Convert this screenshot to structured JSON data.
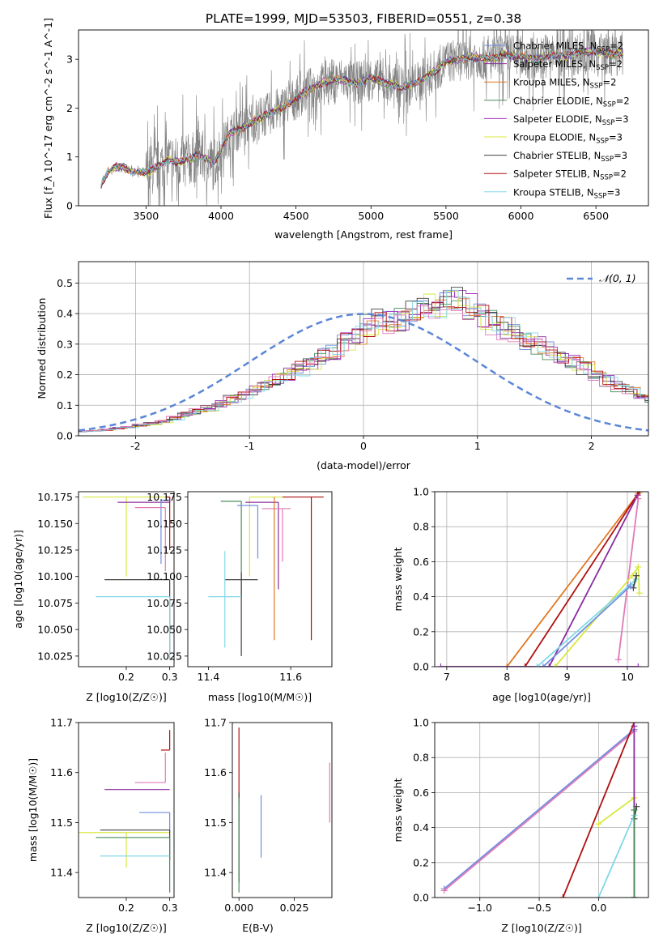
{
  "figure": {
    "title": "PLATE=1999, MJD=53503, FIBERID=0551, z=0.38"
  },
  "colors": {
    "chabrier_miles": "#6f8fe0",
    "salpeter_miles": "#8a2b9e",
    "kroupa_miles": "#e07820",
    "chabrier_elodie": "#4a8a5a",
    "salpeter_elodie": "#a030c0",
    "kroupa_elodie": "#d8e840",
    "chabrier_stelib": "#404040",
    "salpeter_stelib": "#b01010",
    "kroupa_stelib": "#80d8e8",
    "kroupa_pink": "#e07ab8",
    "data_grey": "#808080",
    "normal_dash": "#5b86d8"
  },
  "chart_data": [
    {
      "id": "spectrum",
      "type": "line",
      "title": "PLATE=1999, MJD=53503, FIBERID=0551, z=0.38",
      "xlabel": "wavelength [Angstrom, rest frame]",
      "ylabel": "Flux [f_λ 10^-17 erg cm^-2 s^-1 A^-1]",
      "xlim": [
        3050,
        6850
      ],
      "ylim": [
        0,
        3.6
      ],
      "xticks": [
        3500,
        4000,
        4500,
        5000,
        5500,
        6000,
        6500
      ],
      "yticks": [
        0,
        1,
        2,
        3
      ],
      "legend_position": "top-right",
      "continuum": {
        "x": [
          3200,
          3250,
          3300,
          3350,
          3400,
          3450,
          3500,
          3550,
          3600,
          3650,
          3700,
          3750,
          3800,
          3850,
          3900,
          3950,
          4000,
          4050,
          4100,
          4150,
          4200,
          4300,
          4400,
          4500,
          4600,
          4700,
          4800,
          4900,
          5000,
          5100,
          5200,
          5300,
          5400,
          5500,
          5600,
          5700,
          5800,
          5900,
          6000,
          6100,
          6200,
          6300,
          6400,
          6500,
          6600,
          6680
        ],
        "y": [
          0.45,
          0.7,
          0.8,
          0.78,
          0.72,
          0.7,
          0.68,
          0.75,
          0.85,
          0.95,
          0.9,
          0.92,
          0.95,
          1.05,
          0.95,
          0.85,
          1.15,
          1.45,
          1.55,
          1.6,
          1.72,
          1.85,
          2.0,
          2.2,
          2.4,
          2.55,
          2.6,
          2.5,
          2.62,
          2.5,
          2.45,
          2.5,
          2.7,
          2.95,
          3.0,
          3.05,
          3.0,
          3.1,
          3.05,
          3.0,
          3.1,
          3.05,
          3.15,
          3.15,
          3.1,
          3.12
        ]
      },
      "series": [
        {
          "name": "Chabrier MILES, N_SSP=2",
          "name_main": "Chabrier MILES, N",
          "name_sub": "SSP",
          "name_tail": "=2",
          "color_key": "chabrier_miles"
        },
        {
          "name": "Salpeter MILES, N_SSP=2",
          "name_main": "Salpeter MILES, N",
          "name_sub": "SSP",
          "name_tail": "=2",
          "color_key": "salpeter_miles"
        },
        {
          "name": "Kroupa MILES, N_SSP=2",
          "name_main": "Kroupa MILES, N",
          "name_sub": "SSP",
          "name_tail": "=2",
          "color_key": "kroupa_miles"
        },
        {
          "name": "Chabrier ELODIE, N_SSP=2",
          "name_main": "Chabrier ELODIE, N",
          "name_sub": "SSP",
          "name_tail": "=2",
          "color_key": "chabrier_elodie"
        },
        {
          "name": "Salpeter ELODIE, N_SSP=3",
          "name_main": "Salpeter ELODIE, N",
          "name_sub": "SSP",
          "name_tail": "=3",
          "color_key": "salpeter_elodie"
        },
        {
          "name": "Kroupa ELODIE, N_SSP=3",
          "name_main": "Kroupa ELODIE, N",
          "name_sub": "SSP",
          "name_tail": "=3",
          "color_key": "kroupa_elodie"
        },
        {
          "name": "Chabrier STELIB, N_SSP=3",
          "name_main": "Chabrier STELIB, N",
          "name_sub": "SSP",
          "name_tail": "=3",
          "color_key": "chabrier_stelib"
        },
        {
          "name": "Salpeter STELIB, N_SSP=2",
          "name_main": "Salpeter STELIB, N",
          "name_sub": "SSP",
          "name_tail": "=2",
          "color_key": "salpeter_stelib"
        },
        {
          "name": "Kroupa STELIB, N_SSP=3",
          "name_main": "Kroupa STELIB, N",
          "name_sub": "SSP",
          "name_tail": "=3",
          "color_key": "kroupa_stelib"
        }
      ]
    },
    {
      "id": "residuals",
      "type": "line",
      "xlabel": "(data-model)/error",
      "ylabel": "Normed distribution",
      "xlim": [
        -2.5,
        2.5
      ],
      "ylim": [
        0,
        0.57
      ],
      "xticks": [
        -2,
        -1,
        0,
        1,
        2
      ],
      "yticks": [
        0.0,
        0.1,
        0.2,
        0.3,
        0.4,
        0.5
      ],
      "grid": true,
      "legend_position": "top-right",
      "normal_label": "𝒩(0, 1)",
      "bin_width": 0.1,
      "bin_start": -2.5,
      "base_histogram": [
        0.015,
        0.017,
        0.02,
        0.025,
        0.028,
        0.035,
        0.04,
        0.048,
        0.058,
        0.07,
        0.08,
        0.09,
        0.105,
        0.12,
        0.13,
        0.15,
        0.17,
        0.185,
        0.2,
        0.22,
        0.24,
        0.26,
        0.28,
        0.31,
        0.33,
        0.36,
        0.38,
        0.37,
        0.38,
        0.41,
        0.42,
        0.43,
        0.44,
        0.45,
        0.42,
        0.39,
        0.37,
        0.35,
        0.33,
        0.31,
        0.3,
        0.28,
        0.26,
        0.24,
        0.22,
        0.2,
        0.18,
        0.16,
        0.15,
        0.13,
        0.12,
        0.1,
        0.09,
        0.075,
        0.065,
        0.055,
        0.05,
        0.045,
        0.04,
        0.035,
        0.03,
        0.028,
        0.025,
        0.022,
        0.02,
        0.018,
        0.017,
        0.016,
        0.015,
        0.014
      ]
    },
    {
      "id": "age_vs_z",
      "type": "scatter",
      "xlabel": "Z [log10(Z/Z☉)]",
      "ylabel": "age [log10(age/yr)]",
      "xlim": [
        0.09,
        0.31
      ],
      "ylim": [
        10.015,
        10.18
      ],
      "xticks": [
        0.2,
        0.3
      ],
      "yticks": [
        10.025,
        10.05,
        10.075,
        10.1,
        10.125,
        10.15,
        10.175
      ],
      "ytick_labels": [
        "10.025",
        "10.050",
        "10.075",
        "10.100",
        "10.125",
        "10.150",
        "10.175"
      ],
      "points": [
        {
          "color_key": "kroupa_elodie",
          "x": 0.2,
          "y": 10.175,
          "xerr": [
            0.1,
            0.1
          ],
          "yerr": [
            0.075,
            0.0
          ]
        },
        {
          "color_key": "salpeter_miles",
          "x": 0.3,
          "y": 10.17,
          "xerr": [
            0.12,
            0.0
          ],
          "yerr": [
            0.0,
            0.005
          ]
        },
        {
          "color_key": "chabrier_miles",
          "x": 0.28,
          "y": 10.172,
          "xerr": [
            0.0,
            0.02
          ],
          "yerr": [
            0.06,
            0.0
          ]
        },
        {
          "color_key": "kroupa_pink",
          "x": 0.29,
          "y": 10.165,
          "xerr": [
            0.07,
            0.0
          ],
          "yerr": [
            0.06,
            0.0
          ]
        },
        {
          "color_key": "salpeter_stelib",
          "x": 0.3,
          "y": 10.175,
          "xerr": [
            0.01,
            0.0
          ],
          "yerr": [
            0.05,
            0.0
          ]
        },
        {
          "color_key": "chabrier_stelib",
          "x": 0.3,
          "y": 10.097,
          "xerr": [
            0.15,
            0.0
          ],
          "yerr": [
            0.07,
            0.0
          ]
        },
        {
          "color_key": "kroupa_stelib",
          "x": 0.3,
          "y": 10.081,
          "xerr": [
            0.17,
            0.0
          ],
          "yerr": [
            0.06,
            0.0
          ]
        }
      ]
    },
    {
      "id": "age_vs_mass",
      "type": "scatter",
      "xlabel": "mass [log10(M/M☉)]",
      "xlim": [
        11.35,
        11.7
      ],
      "ylim": [
        10.015,
        10.18
      ],
      "xticks": [
        11.4,
        11.6
      ],
      "yticks": [
        10.025,
        10.05,
        10.075,
        10.1,
        10.125,
        10.15,
        10.175
      ],
      "ytick_labels": [
        "10.025",
        "10.050",
        "10.075",
        "10.100",
        "10.125",
        "10.150",
        "10.175"
      ],
      "points": [
        {
          "color_key": "chabrier_elodie",
          "x": 11.48,
          "y": 10.171,
          "xerr": [
            0.05,
            0.0
          ],
          "yerr": [
            0.09,
            0.0
          ]
        },
        {
          "color_key": "kroupa_elodie",
          "x": 11.5,
          "y": 10.175,
          "xerr": [
            0.0,
            0.1
          ],
          "yerr": [
            0.075,
            0.0
          ]
        },
        {
          "color_key": "salpeter_stelib",
          "x": 11.65,
          "y": 10.175,
          "xerr": [
            0.07,
            0.03
          ],
          "yerr": [
            0.135,
            0.0
          ]
        },
        {
          "color_key": "salpeter_miles",
          "x": 11.57,
          "y": 10.17,
          "xerr": [
            0.08,
            0.0
          ],
          "yerr": [
            0.082,
            0.0
          ]
        },
        {
          "color_key": "chabrier_miles",
          "x": 11.52,
          "y": 10.167,
          "xerr": [
            0.05,
            0.0
          ],
          "yerr": [
            0.05,
            0.0
          ]
        },
        {
          "color_key": "kroupa_pink",
          "x": 11.58,
          "y": 10.164,
          "xerr": [
            0.05,
            0.02
          ],
          "yerr": [
            0.05,
            0.0
          ]
        },
        {
          "color_key": "kroupa_miles",
          "x": 11.56,
          "y": 10.175,
          "xerr": [
            0.0,
            0.0
          ],
          "yerr": [
            0.135,
            0.0
          ]
        },
        {
          "color_key": "chabrier_stelib",
          "x": 11.48,
          "y": 10.097,
          "xerr": [
            0.04,
            0.04
          ],
          "yerr": [
            0.072,
            0.007
          ]
        },
        {
          "color_key": "kroupa_stelib",
          "x": 11.44,
          "y": 10.081,
          "xerr": [
            0.04,
            0.04
          ],
          "yerr": [
            0.048,
            0.043
          ]
        }
      ]
    },
    {
      "id": "weight_vs_age",
      "type": "line",
      "xlabel": "age [log10(age/yr)]",
      "ylabel": "mass weight",
      "xlim": [
        6.8,
        10.35
      ],
      "ylim": [
        0,
        1
      ],
      "xticks": [
        7,
        8,
        9,
        10
      ],
      "yticks": [
        0.0,
        0.2,
        0.4,
        0.6,
        0.8,
        1.0
      ],
      "grid": true,
      "series": [
        {
          "color_key": "kroupa_miles",
          "x": [
            8.0,
            10.18
          ],
          "y": [
            0.0,
            0.99
          ]
        },
        {
          "color_key": "salpeter_stelib",
          "x": [
            8.3,
            10.2
          ],
          "y": [
            0.0,
            1.0
          ]
        },
        {
          "color_key": "salpeter_miles",
          "x": [
            8.7,
            10.17
          ],
          "y": [
            0.0,
            0.98
          ]
        },
        {
          "color_key": "salpeter_elodie",
          "x": [
            6.9,
            10.18
          ],
          "y": [
            0.0,
            0.0
          ]
        },
        {
          "color_key": "kroupa_pink",
          "x": [
            9.85,
            10.18
          ],
          "y": [
            0.04,
            0.96
          ]
        },
        {
          "color_key": "kroupa_elodie",
          "x": [
            8.8,
            10.08,
            10.18,
            10.2
          ],
          "y": [
            0.0,
            0.52,
            0.57,
            0.42
          ]
        },
        {
          "color_key": "kroupa_stelib",
          "x": [
            8.5,
            10.05,
            10.15
          ],
          "y": [
            0.0,
            0.47,
            0.5
          ]
        },
        {
          "color_key": "chabrier_stelib",
          "x": [
            10.1,
            10.15
          ],
          "y": [
            0.45,
            0.52
          ]
        },
        {
          "color_key": "chabrier_miles",
          "x": [
            8.6,
            10.05
          ],
          "y": [
            0.0,
            0.46
          ]
        }
      ]
    },
    {
      "id": "mass_vs_z",
      "type": "scatter",
      "xlabel": "Z [log10(Z/Z☉)]",
      "ylabel": "mass [log10(M/M☉)]",
      "xlim": [
        0.09,
        0.31
      ],
      "ylim": [
        11.35,
        11.7
      ],
      "xticks": [
        0.2,
        0.3
      ],
      "yticks": [
        11.4,
        11.5,
        11.6,
        11.7
      ],
      "points": [
        {
          "color_key": "salpeter_stelib",
          "x": 0.3,
          "y": 11.645,
          "xerr": [
            0.02,
            0.0
          ],
          "yerr": [
            0.0,
            0.04
          ]
        },
        {
          "color_key": "kroupa_pink",
          "x": 0.29,
          "y": 11.58,
          "xerr": [
            0.07,
            0.0
          ],
          "yerr": [
            0.0,
            0.06
          ]
        },
        {
          "color_key": "salpeter_miles",
          "x": 0.3,
          "y": 11.566,
          "xerr": [
            0.15,
            0.0
          ],
          "yerr": [
            0.0,
            0.0
          ]
        },
        {
          "color_key": "chabrier_miles",
          "x": 0.3,
          "y": 11.52,
          "xerr": [
            0.07,
            0.0
          ],
          "yerr": [
            0.04,
            0.0
          ]
        },
        {
          "color_key": "kroupa_elodie",
          "x": 0.2,
          "y": 11.48,
          "xerr": [
            0.2,
            0.1
          ],
          "yerr": [
            0.07,
            0.0
          ]
        },
        {
          "color_key": "chabrier_stelib",
          "x": 0.3,
          "y": 11.485,
          "xerr": [
            0.16,
            0.0
          ],
          "yerr": [
            0.06,
            0.0
          ]
        },
        {
          "color_key": "chabrier_elodie",
          "x": 0.3,
          "y": 11.47,
          "xerr": [
            0.17,
            0.0
          ],
          "yerr": [
            0.11,
            0.0
          ]
        },
        {
          "color_key": "kroupa_stelib",
          "x": 0.3,
          "y": 11.433,
          "xerr": [
            0.16,
            0.0
          ],
          "yerr": [
            0.0,
            0.0
          ]
        }
      ]
    },
    {
      "id": "mass_vs_ebv",
      "type": "scatter",
      "xlabel": "E(B-V)",
      "xlim": [
        -0.003,
        0.042
      ],
      "ylim": [
        11.35,
        11.7
      ],
      "xticks": [
        0.0,
        0.025
      ],
      "xtick_labels": [
        "0.000",
        "0.025"
      ],
      "yticks": [
        11.4,
        11.5,
        11.6,
        11.7
      ],
      "points": [
        {
          "color_key": "salpeter_stelib",
          "x": 0.0,
          "y": 11.65,
          "xerr": [
            0.0,
            0.0
          ],
          "yerr": [
            0.11,
            0.04
          ]
        },
        {
          "color_key": "chabrier_stelib",
          "x": 0.0,
          "y": 11.5,
          "xerr": [
            0.0,
            0.0
          ],
          "yerr": [
            0.12,
            0.06
          ]
        },
        {
          "color_key": "chabrier_elodie",
          "x": 0.0,
          "y": 11.45,
          "xerr": [
            0.0,
            0.0
          ],
          "yerr": [
            0.09,
            0.1
          ]
        },
        {
          "color_key": "chabrier_miles",
          "x": 0.01,
          "y": 11.49,
          "xerr": [
            0.0,
            0.0
          ],
          "yerr": [
            0.06,
            0.065
          ]
        },
        {
          "color_key": "kroupa_pink",
          "x": 0.041,
          "y": 11.56,
          "xerr": [
            0.0,
            0.0
          ],
          "yerr": [
            0.06,
            0.06
          ]
        }
      ]
    },
    {
      "id": "weight_vs_z",
      "type": "line",
      "xlabel": "Z [log10(Z/Z☉)]",
      "ylabel": "mass weight",
      "xlim": [
        -1.38,
        0.42
      ],
      "ylim": [
        0,
        1
      ],
      "xticks": [
        -1.0,
        -0.5,
        0.0
      ],
      "xtick_labels": [
        "−1.0",
        "−0.5",
        "0.0"
      ],
      "yticks": [
        0.0,
        0.2,
        0.4,
        0.6,
        0.8,
        1.0
      ],
      "grid": true,
      "series": [
        {
          "color_key": "chabrier_miles",
          "x": [
            -1.3,
            0.3
          ],
          "y": [
            0.05,
            0.96
          ]
        },
        {
          "color_key": "kroupa_pink",
          "x": [
            -1.3,
            0.3
          ],
          "y": [
            0.04,
            0.95
          ]
        },
        {
          "color_key": "salpeter_stelib",
          "x": [
            -0.3,
            0.3
          ],
          "y": [
            0.0,
            1.0
          ]
        },
        {
          "color_key": "kroupa_elodie",
          "x": [
            0.0,
            0.3,
            0.3
          ],
          "y": [
            0.42,
            0.57,
            0.0
          ]
        },
        {
          "color_key": "salpeter_miles",
          "x": [
            0.3,
            0.3
          ],
          "y": [
            0.0,
            0.98
          ]
        },
        {
          "color_key": "chabrier_stelib",
          "x": [
            0.3,
            0.32
          ],
          "y": [
            0.45,
            0.52
          ]
        },
        {
          "color_key": "kroupa_stelib",
          "x": [
            0.0,
            0.3
          ],
          "y": [
            0.0,
            0.47
          ]
        },
        {
          "color_key": "chabrier_elodie",
          "x": [
            0.3,
            0.3
          ],
          "y": [
            0.0,
            0.5
          ]
        }
      ]
    }
  ]
}
